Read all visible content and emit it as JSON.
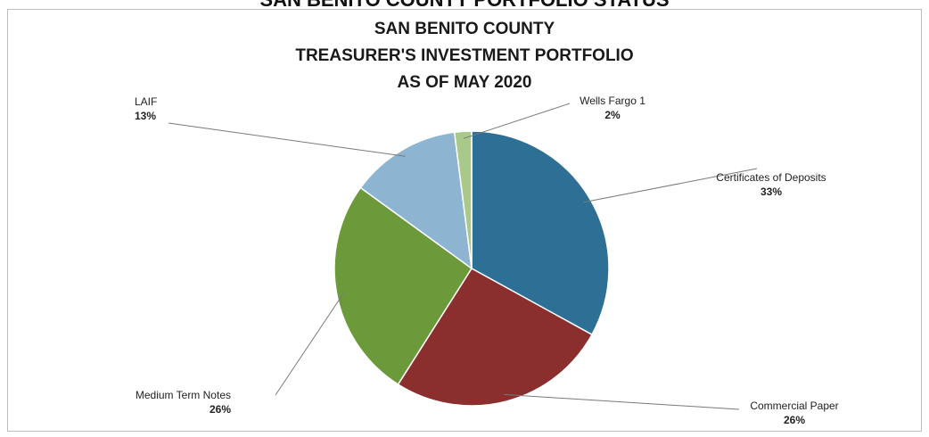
{
  "page": {
    "header_text": "SAN BENITO COUNTY PORTFOLIO STATUS"
  },
  "chart_data": {
    "type": "pie",
    "title_lines": [
      "SAN BENITO COUNTY",
      "TREASURER'S INVESTMENT PORTFOLIO",
      "AS OF MAY 2020"
    ],
    "slices": [
      {
        "label": "Certificates of Deposits",
        "value": 33,
        "pct_label": "33%",
        "color": "#2e6f95"
      },
      {
        "label": "Commercial Paper",
        "value": 26,
        "pct_label": "26%",
        "color": "#8b2e2e"
      },
      {
        "label": "Medium Term Notes",
        "value": 26,
        "pct_label": "26%",
        "color": "#6c9a3a"
      },
      {
        "label": "LAIF",
        "value": 13,
        "pct_label": "13%",
        "color": "#8db4d0"
      },
      {
        "label": "Wells Fargo 1",
        "value": 2,
        "pct_label": "2%",
        "color": "#a9c98a"
      }
    ],
    "legend": "none",
    "grid": false
  }
}
